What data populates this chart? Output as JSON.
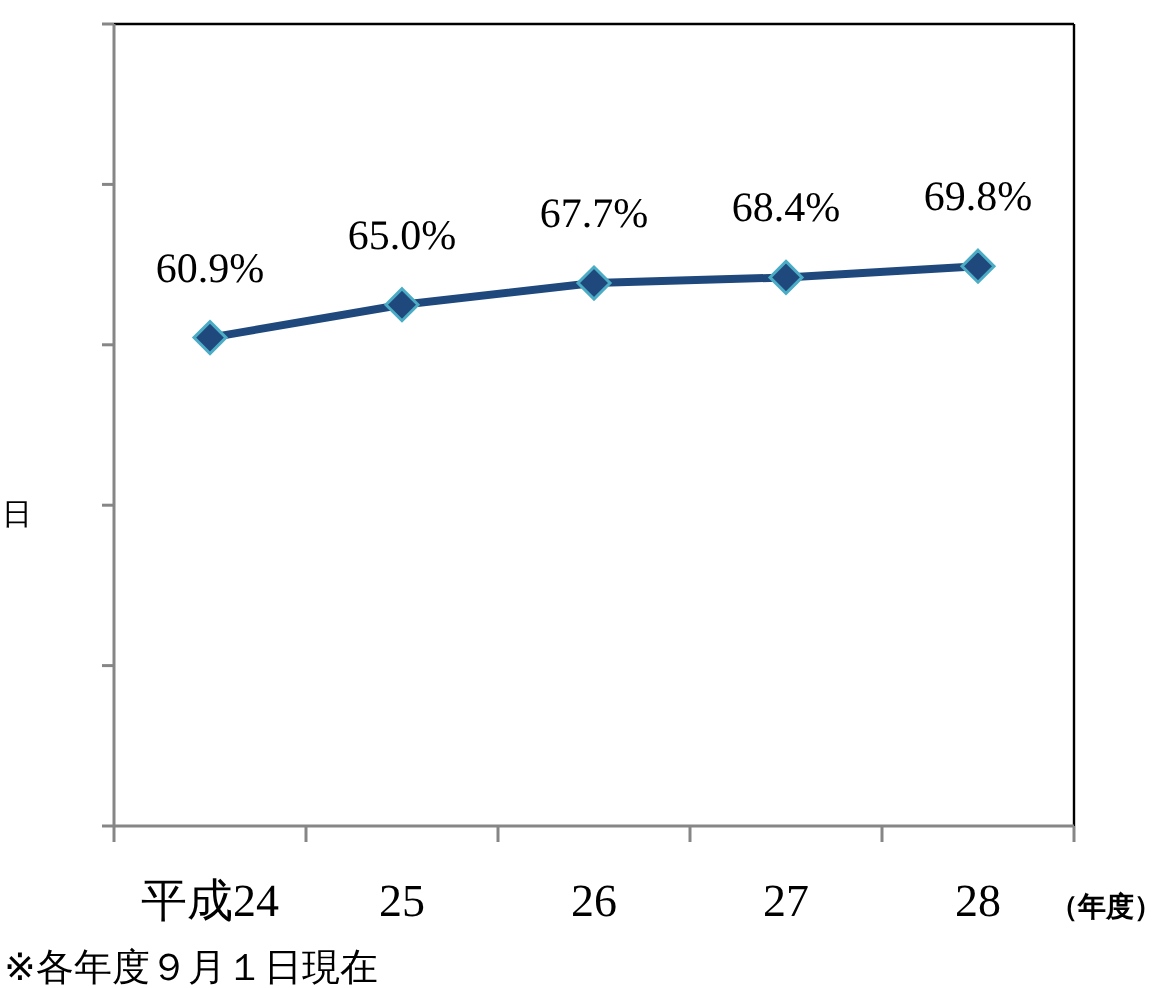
{
  "chart_data": {
    "type": "line",
    "categories": [
      "平成24",
      "25",
      "26",
      "27",
      "28"
    ],
    "series": [
      {
        "color": "#1f497d",
        "values": [
          60.9,
          65.0,
          67.7,
          68.4,
          69.8
        ],
        "value_labels": [
          "60.9%",
          "65.0%",
          "67.7%",
          "68.4%",
          "69.8%"
        ]
      }
    ],
    "tick_labels": "x",
    "grid": false,
    "marker": "diamond",
    "line_style": "solid",
    "xlabel": "（年度）",
    "ylabel": "日",
    "annotations": [
      "※各年度９月１日現在"
    ]
  }
}
